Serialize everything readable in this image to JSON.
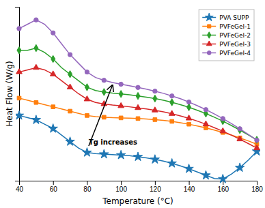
{
  "chart_data": {
    "type": "line",
    "x": [
      40,
      45,
      50,
      55,
      60,
      65,
      70,
      75,
      80,
      85,
      90,
      95,
      100,
      105,
      110,
      115,
      120,
      125,
      130,
      135,
      140,
      145,
      150,
      155,
      160,
      165,
      170,
      175,
      180
    ],
    "series": [
      {
        "name": "PVA SUPP",
        "marker": "star",
        "values": [
          0.3,
          0.29,
          0.28,
          0.26,
          0.24,
          0.21,
          0.18,
          0.15,
          0.13,
          0.125,
          0.122,
          0.12,
          0.118,
          0.115,
          0.11,
          0.105,
          0.098,
          0.09,
          0.08,
          0.068,
          0.055,
          0.04,
          0.025,
          0.01,
          0.008,
          0.03,
          0.06,
          0.095,
          0.135
        ]
      },
      {
        "name": "PVFeGel-1",
        "marker": "square",
        "values": [
          0.38,
          0.37,
          0.36,
          0.35,
          0.34,
          0.33,
          0.32,
          0.31,
          0.3,
          0.295,
          0.292,
          0.29,
          0.289,
          0.288,
          0.286,
          0.284,
          0.281,
          0.278,
          0.273,
          0.267,
          0.26,
          0.252,
          0.243,
          0.233,
          0.222,
          0.21,
          0.197,
          0.183,
          0.168
        ]
      },
      {
        "name": "PVFeGel-2",
        "marker": "diamond",
        "values": [
          0.6,
          0.6,
          0.61,
          0.59,
          0.56,
          0.52,
          0.49,
          0.46,
          0.43,
          0.415,
          0.408,
          0.403,
          0.399,
          0.395,
          0.39,
          0.384,
          0.378,
          0.37,
          0.361,
          0.35,
          0.338,
          0.324,
          0.309,
          0.292,
          0.274,
          0.254,
          0.233,
          0.211,
          0.188
        ]
      },
      {
        "name": "PVFeGel-3",
        "marker": "triangle",
        "values": [
          0.5,
          0.51,
          0.52,
          0.51,
          0.49,
          0.46,
          0.43,
          0.4,
          0.375,
          0.36,
          0.353,
          0.348,
          0.344,
          0.34,
          0.335,
          0.33,
          0.324,
          0.317,
          0.308,
          0.298,
          0.287,
          0.274,
          0.26,
          0.244,
          0.228,
          0.21,
          0.191,
          0.171,
          0.15
        ]
      },
      {
        "name": "PVFeGel-4",
        "marker": "circle",
        "values": [
          0.7,
          0.72,
          0.74,
          0.72,
          0.68,
          0.63,
          0.58,
          0.54,
          0.5,
          0.475,
          0.462,
          0.452,
          0.444,
          0.437,
          0.429,
          0.421,
          0.412,
          0.402,
          0.39,
          0.377,
          0.362,
          0.345,
          0.327,
          0.307,
          0.286,
          0.263,
          0.239,
          0.213,
          0.186
        ]
      }
    ],
    "x_label": "Temperature (°C)",
    "y_label": "Heat Flow (W/g)",
    "xlim": [
      40,
      180
    ],
    "xticks": [
      40,
      60,
      80,
      100,
      120,
      140,
      160,
      180
    ],
    "ylim": [
      0,
      0.8
    ],
    "tick_labels": "x",
    "grid": false,
    "legend": "upper right",
    "annotations": [
      {
        "text": "Tg increases",
        "x": 81,
        "y": 0.16,
        "arrow_x": 95,
        "arrow_y": 0.44
      }
    ]
  }
}
